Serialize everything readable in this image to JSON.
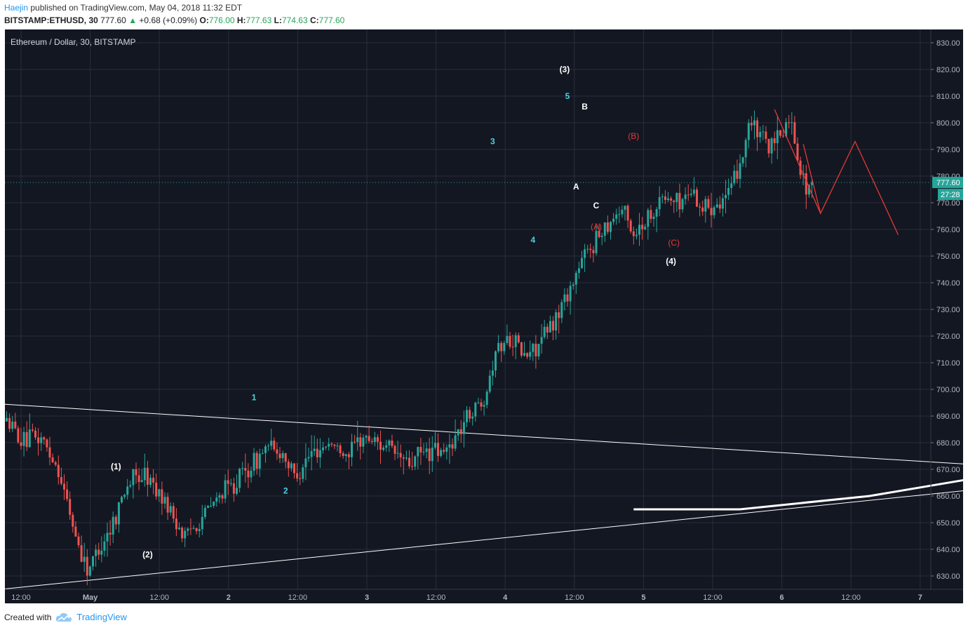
{
  "header": {
    "author": "Haejin",
    "published_text": "published on TradingView.com, May 04, 2018 11:32 EDT",
    "symbol": "BITSTAMP:ETHUSD, 30",
    "last": "777.60",
    "change_arrow": "▲",
    "change": "+0.68 (+0.09%)",
    "o_label": "O:",
    "o_value": "776.00",
    "h_label": "H:",
    "h_value": "777.63",
    "l_label": "L:",
    "l_value": "774.63",
    "c_label": "C:",
    "c_value": "777.60"
  },
  "footer": {
    "created_with": "Created with",
    "brand": "TradingView",
    "logo_icon": "tradingview-cloud-icon"
  },
  "colors": {
    "background": "#131722",
    "grid": "#2a2e39",
    "up": "#26a69a",
    "down": "#ef5350",
    "wave_cyan": "#4dd0e1",
    "wave_red": "#e53935",
    "price_badge": "#26a69a"
  },
  "chart_data": {
    "type": "candlestick",
    "title": "Ethereum / Dollar, 30, BITSTAMP",
    "ylim": [
      625,
      835
    ],
    "y_ticks": [
      "830.00",
      "820.00",
      "810.00",
      "800.00",
      "790.00",
      "780.00",
      "770.00",
      "760.00",
      "750.00",
      "740.00",
      "730.00",
      "720.00",
      "710.00",
      "700.00",
      "690.00",
      "680.00",
      "670.00",
      "660.00",
      "650.00",
      "640.00",
      "630.00"
    ],
    "x_ticks": [
      "12:00",
      "May",
      "12:00",
      "2",
      "12:00",
      "3",
      "12:00",
      "4",
      "12:00",
      "5",
      "12:00",
      "6",
      "12:00",
      "7"
    ],
    "x_unit": "30-minute bars from 2018-04-30 06:30 EDT",
    "last_price_label": "777.60",
    "countdown_label": "27:28",
    "price_path": [
      [
        0,
        688
      ],
      [
        6,
        680
      ],
      [
        12,
        682
      ],
      [
        18,
        670
      ],
      [
        24,
        645
      ],
      [
        28,
        632
      ],
      [
        32,
        640
      ],
      [
        36,
        648
      ],
      [
        42,
        665
      ],
      [
        48,
        668
      ],
      [
        54,
        660
      ],
      [
        58,
        652
      ],
      [
        62,
        645
      ],
      [
        66,
        650
      ],
      [
        70,
        655
      ],
      [
        76,
        662
      ],
      [
        80,
        666
      ],
      [
        86,
        672
      ],
      [
        90,
        678
      ],
      [
        96,
        676
      ],
      [
        100,
        668
      ],
      [
        106,
        676
      ],
      [
        112,
        680
      ],
      [
        118,
        676
      ],
      [
        124,
        682
      ],
      [
        130,
        680
      ],
      [
        136,
        675
      ],
      [
        140,
        672
      ],
      [
        146,
        677
      ],
      [
        152,
        676
      ],
      [
        156,
        682
      ],
      [
        160,
        690
      ],
      [
        166,
        697
      ],
      [
        170,
        715
      ],
      [
        176,
        720
      ],
      [
        180,
        712
      ],
      [
        186,
        718
      ],
      [
        190,
        725
      ],
      [
        196,
        738
      ],
      [
        200,
        748
      ],
      [
        204,
        755
      ],
      [
        208,
        762
      ],
      [
        214,
        768
      ],
      [
        218,
        758
      ],
      [
        224,
        766
      ],
      [
        228,
        772
      ],
      [
        234,
        770
      ],
      [
        238,
        775
      ],
      [
        242,
        768
      ],
      [
        248,
        771
      ],
      [
        252,
        774
      ],
      [
        254,
        782
      ],
      [
        256,
        789
      ],
      [
        258,
        800
      ],
      [
        262,
        795
      ],
      [
        266,
        790
      ],
      [
        270,
        797
      ],
      [
        272,
        802
      ],
      [
        274,
        794
      ],
      [
        276,
        782
      ],
      [
        278,
        776
      ],
      [
        280,
        777.6
      ]
    ],
    "trendlines": [
      {
        "name": "upper-trendline",
        "from": [
          -2,
          694.5
        ],
        "to": [
          333,
          672
        ]
      },
      {
        "name": "lower-trendline",
        "from": [
          -2,
          625
        ],
        "to": [
          333,
          662
        ]
      },
      {
        "name": "bold-curve",
        "points": [
          [
            218,
            655
          ],
          [
            255,
            655
          ],
          [
            300,
            660
          ],
          [
            333,
            666
          ]
        ]
      }
    ],
    "red_path": {
      "name": "abc-projection",
      "points": [
        [
          267,
          805
        ],
        [
          283,
          766
        ],
        [
          295,
          793
        ],
        [
          310,
          758
        ]
      ]
    },
    "red_ab_segment": {
      "points": [
        [
          277,
          792
        ],
        [
          283,
          766
        ]
      ]
    },
    "wave_labels": [
      {
        "text": "1",
        "x": 86,
        "y": 697,
        "color": "cyan"
      },
      {
        "text": "2",
        "x": 97,
        "y": 662,
        "color": "cyan"
      },
      {
        "text": "3",
        "x": 169,
        "y": 793,
        "color": "cyan"
      },
      {
        "text": "4",
        "x": 183,
        "y": 756,
        "color": "cyan"
      },
      {
        "text": "5",
        "x": 195,
        "y": 810,
        "color": "cyan"
      },
      {
        "text": "(1)",
        "x": 38,
        "y": 671,
        "color": "white"
      },
      {
        "text": "(2)",
        "x": 49,
        "y": 638,
        "color": "white"
      },
      {
        "text": "(3)",
        "x": 194,
        "y": 820,
        "color": "white"
      },
      {
        "text": "(4)",
        "x": 231,
        "y": 748,
        "color": "white"
      },
      {
        "text": "A",
        "x": 198,
        "y": 776,
        "color": "white"
      },
      {
        "text": "B",
        "x": 201,
        "y": 806,
        "color": "white"
      },
      {
        "text": "C",
        "x": 205,
        "y": 769,
        "color": "white"
      },
      {
        "text": "(A)",
        "x": 205,
        "y": 761,
        "color": "red"
      },
      {
        "text": "(B)",
        "x": 218,
        "y": 795,
        "color": "red"
      },
      {
        "text": "(C)",
        "x": 232,
        "y": 755,
        "color": "red"
      }
    ]
  }
}
